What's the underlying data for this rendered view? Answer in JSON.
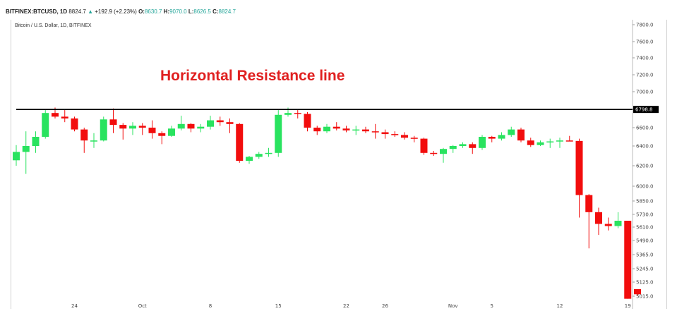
{
  "header": {
    "symbol": "BITFINEX:BTCUSD, 1D",
    "last": "8824.7",
    "change_arrow": "▲",
    "change": "+192.9 (+2.23%)",
    "open_label": "O:",
    "open": "8630.7",
    "high_label": "H:",
    "high": "9070.0",
    "low_label": "L:",
    "low": "8626.5",
    "close_label": "C:",
    "close": "8824.7"
  },
  "chart_data": {
    "type": "candlestick",
    "subtitle": "Bitcoin / U.S. Dollar, 1D, BITFINEX",
    "annotation": "Horizontal Resistance line",
    "resistance_level": 6798.8,
    "resistance_label": "6798.8",
    "ylim": [
      4995,
      7880
    ],
    "y_ticks": [
      {
        "v": 7800,
        "label": "7800.0"
      },
      {
        "v": 7600,
        "label": "7600.0"
      },
      {
        "v": 7400,
        "label": "7400.0"
      },
      {
        "v": 7200,
        "label": "7200.0"
      },
      {
        "v": 7000,
        "label": "7000.0"
      },
      {
        "v": 6800,
        "label": "6800.0"
      },
      {
        "v": 6600,
        "label": "6600.0"
      },
      {
        "v": 6400,
        "label": "6400.0"
      },
      {
        "v": 6200,
        "label": "6200.0"
      },
      {
        "v": 6000,
        "label": "6000.0"
      },
      {
        "v": 5850,
        "label": "5850.0"
      },
      {
        "v": 5730,
        "label": "5730.0"
      },
      {
        "v": 5610,
        "label": "5610.0"
      },
      {
        "v": 5490,
        "label": "5490.0"
      },
      {
        "v": 5365,
        "label": "5365.0"
      },
      {
        "v": 5245,
        "label": "5245.0"
      },
      {
        "v": 5125,
        "label": "5125.0"
      },
      {
        "v": 5015,
        "label": "5015.0"
      }
    ],
    "x_ticks": [
      {
        "i": 6,
        "label": "24"
      },
      {
        "i": 13,
        "label": "Oct"
      },
      {
        "i": 20,
        "label": "8"
      },
      {
        "i": 27,
        "label": "15"
      },
      {
        "i": 34,
        "label": "22"
      },
      {
        "i": 38,
        "label": "26"
      },
      {
        "i": 45,
        "label": "Nov"
      },
      {
        "i": 49,
        "label": "5"
      },
      {
        "i": 56,
        "label": "12"
      },
      {
        "i": 63,
        "label": "19"
      }
    ],
    "colors": {
      "up": "#29e35f",
      "down": "#f20d0d",
      "line": "#000000",
      "grid": "#e6e6e6"
    },
    "candles": [
      {
        "o": 6255,
        "h": 6410,
        "l": 6200,
        "c": 6340
      },
      {
        "o": 6340,
        "h": 6560,
        "l": 6120,
        "c": 6400
      },
      {
        "o": 6400,
        "h": 6560,
        "l": 6330,
        "c": 6500
      },
      {
        "o": 6500,
        "h": 6800,
        "l": 6480,
        "c": 6760
      },
      {
        "o": 6760,
        "h": 6820,
        "l": 6700,
        "c": 6720
      },
      {
        "o": 6720,
        "h": 6800,
        "l": 6660,
        "c": 6700
      },
      {
        "o": 6700,
        "h": 6720,
        "l": 6560,
        "c": 6580
      },
      {
        "o": 6580,
        "h": 6600,
        "l": 6330,
        "c": 6460
      },
      {
        "o": 6460,
        "h": 6540,
        "l": 6380,
        "c": 6460
      },
      {
        "o": 6460,
        "h": 6720,
        "l": 6450,
        "c": 6690
      },
      {
        "o": 6690,
        "h": 6810,
        "l": 6540,
        "c": 6630
      },
      {
        "o": 6630,
        "h": 6650,
        "l": 6470,
        "c": 6590
      },
      {
        "o": 6590,
        "h": 6660,
        "l": 6520,
        "c": 6620
      },
      {
        "o": 6620,
        "h": 6650,
        "l": 6520,
        "c": 6600
      },
      {
        "o": 6600,
        "h": 6680,
        "l": 6480,
        "c": 6540
      },
      {
        "o": 6540,
        "h": 6560,
        "l": 6420,
        "c": 6510
      },
      {
        "o": 6510,
        "h": 6620,
        "l": 6500,
        "c": 6590
      },
      {
        "o": 6590,
        "h": 6730,
        "l": 6570,
        "c": 6640
      },
      {
        "o": 6640,
        "h": 6650,
        "l": 6550,
        "c": 6590
      },
      {
        "o": 6590,
        "h": 6640,
        "l": 6550,
        "c": 6610
      },
      {
        "o": 6610,
        "h": 6730,
        "l": 6580,
        "c": 6680
      },
      {
        "o": 6680,
        "h": 6720,
        "l": 6620,
        "c": 6660
      },
      {
        "o": 6660,
        "h": 6700,
        "l": 6540,
        "c": 6640
      },
      {
        "o": 6640,
        "h": 6650,
        "l": 6230,
        "c": 6250
      },
      {
        "o": 6250,
        "h": 6300,
        "l": 6220,
        "c": 6290
      },
      {
        "o": 6290,
        "h": 6340,
        "l": 6270,
        "c": 6320
      },
      {
        "o": 6320,
        "h": 6380,
        "l": 6290,
        "c": 6330
      },
      {
        "o": 6330,
        "h": 6800,
        "l": 6290,
        "c": 6740
      },
      {
        "o": 6740,
        "h": 6820,
        "l": 6720,
        "c": 6760
      },
      {
        "o": 6760,
        "h": 6800,
        "l": 6700,
        "c": 6750
      },
      {
        "o": 6750,
        "h": 6770,
        "l": 6560,
        "c": 6600
      },
      {
        "o": 6600,
        "h": 6620,
        "l": 6520,
        "c": 6560
      },
      {
        "o": 6560,
        "h": 6640,
        "l": 6540,
        "c": 6610
      },
      {
        "o": 6610,
        "h": 6660,
        "l": 6570,
        "c": 6590
      },
      {
        "o": 6590,
        "h": 6620,
        "l": 6550,
        "c": 6570
      },
      {
        "o": 6570,
        "h": 6620,
        "l": 6520,
        "c": 6580
      },
      {
        "o": 6580,
        "h": 6610,
        "l": 6540,
        "c": 6560
      },
      {
        "o": 6560,
        "h": 6640,
        "l": 6480,
        "c": 6550
      },
      {
        "o": 6550,
        "h": 6580,
        "l": 6480,
        "c": 6530
      },
      {
        "o": 6530,
        "h": 6560,
        "l": 6500,
        "c": 6520
      },
      {
        "o": 6520,
        "h": 6550,
        "l": 6470,
        "c": 6490
      },
      {
        "o": 6490,
        "h": 6510,
        "l": 6440,
        "c": 6480
      },
      {
        "o": 6480,
        "h": 6490,
        "l": 6310,
        "c": 6330
      },
      {
        "o": 6330,
        "h": 6350,
        "l": 6300,
        "c": 6320
      },
      {
        "o": 6320,
        "h": 6380,
        "l": 6230,
        "c": 6370
      },
      {
        "o": 6370,
        "h": 6410,
        "l": 6330,
        "c": 6400
      },
      {
        "o": 6400,
        "h": 6440,
        "l": 6380,
        "c": 6420
      },
      {
        "o": 6420,
        "h": 6440,
        "l": 6320,
        "c": 6380
      },
      {
        "o": 6380,
        "h": 6520,
        "l": 6360,
        "c": 6500
      },
      {
        "o": 6500,
        "h": 6510,
        "l": 6440,
        "c": 6480
      },
      {
        "o": 6480,
        "h": 6550,
        "l": 6460,
        "c": 6520
      },
      {
        "o": 6520,
        "h": 6610,
        "l": 6500,
        "c": 6580
      },
      {
        "o": 6580,
        "h": 6600,
        "l": 6440,
        "c": 6460
      },
      {
        "o": 6460,
        "h": 6490,
        "l": 6390,
        "c": 6410
      },
      {
        "o": 6410,
        "h": 6460,
        "l": 6400,
        "c": 6440
      },
      {
        "o": 6440,
        "h": 6480,
        "l": 6380,
        "c": 6450
      },
      {
        "o": 6450,
        "h": 6490,
        "l": 6380,
        "c": 6460
      },
      {
        "o": 6460,
        "h": 6510,
        "l": 6450,
        "c": 6455
      },
      {
        "o": 6455,
        "h": 6480,
        "l": 5700,
        "c": 5910
      },
      {
        "o": 5910,
        "h": 5920,
        "l": 5420,
        "c": 5750
      },
      {
        "o": 5750,
        "h": 5790,
        "l": 5540,
        "c": 5640
      },
      {
        "o": 5640,
        "h": 5700,
        "l": 5580,
        "c": 5620
      },
      {
        "o": 5620,
        "h": 5750,
        "l": 5600,
        "c": 5670
      },
      {
        "o": 5670,
        "h": 5670,
        "l": 4995,
        "c": 4995
      },
      {
        "o": 5070,
        "h": 5070,
        "l": 5020,
        "c": 5030
      }
    ]
  }
}
